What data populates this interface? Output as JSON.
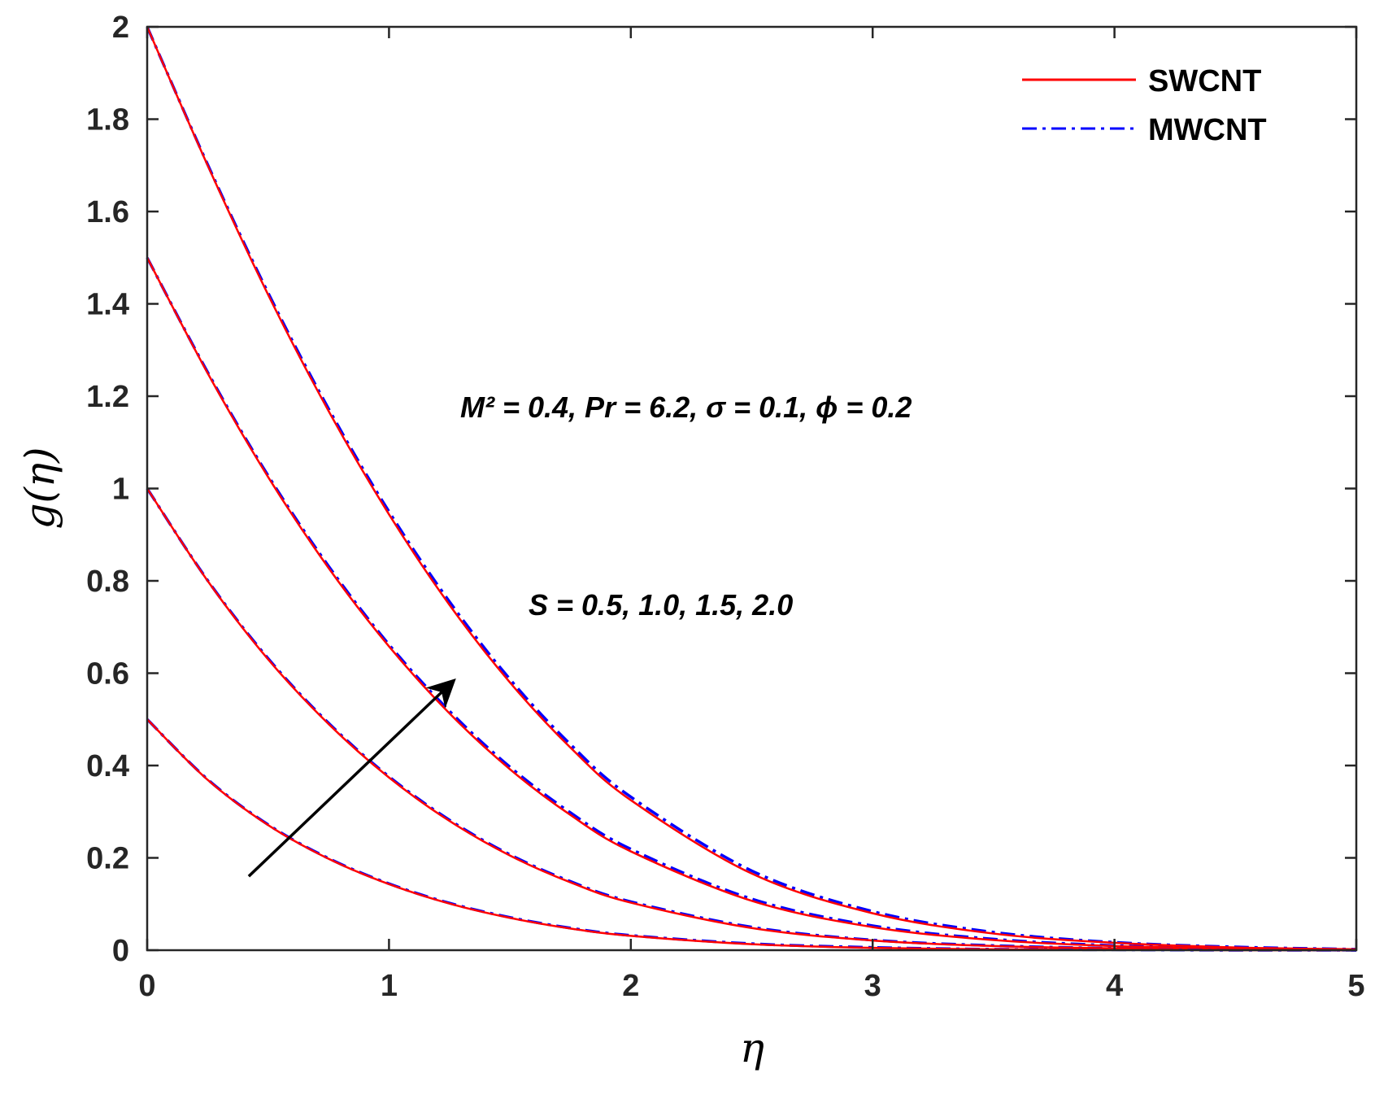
{
  "chart_data": {
    "type": "line",
    "xlabel": "η",
    "ylabel": "g(η)",
    "xlim": [
      0,
      5
    ],
    "ylim": [
      0,
      2
    ],
    "xticks": [
      0,
      1,
      2,
      3,
      4,
      5
    ],
    "yticks": [
      0,
      0.2,
      0.4,
      0.6,
      0.8,
      1,
      1.2,
      1.4,
      1.6,
      1.8,
      2
    ],
    "grid": false,
    "legend_position": "top-right",
    "legend": [
      {
        "label": "SWCNT",
        "color": "#ff0000",
        "style": "solid"
      },
      {
        "label": "MWCNT",
        "color": "#0000ff",
        "style": "dash-dot"
      }
    ],
    "annotations": {
      "params": "M² = 0.4, Pr = 6.2, σ = 0.1, ϕ = 0.2",
      "s_values": "S = 0.5, 1.0, 1.5, 2.0"
    },
    "arrow": {
      "from": [
        0.42,
        0.16
      ],
      "to": [
        1.26,
        0.58
      ],
      "direction": "increasing S"
    },
    "x": [
      0,
      0.25,
      0.5,
      0.75,
      1.0,
      1.25,
      1.5,
      1.75,
      2.0,
      2.5,
      3.0,
      3.5,
      4.0,
      4.5,
      5.0
    ],
    "series": [
      {
        "S": 0.5,
        "SWCNT": [
          0.5,
          0.369,
          0.271,
          0.198,
          0.143,
          0.101,
          0.07,
          0.047,
          0.031,
          0.013,
          0.005,
          0.002,
          0.001,
          0.0,
          0.0
        ],
        "MWCNT": [
          0.5,
          0.37,
          0.272,
          0.199,
          0.144,
          0.102,
          0.071,
          0.048,
          0.032,
          0.014,
          0.006,
          0.002,
          0.001,
          0.0,
          0.0
        ]
      },
      {
        "S": 1.0,
        "SWCNT": [
          1.0,
          0.8,
          0.63,
          0.49,
          0.374,
          0.28,
          0.205,
          0.147,
          0.103,
          0.048,
          0.021,
          0.009,
          0.004,
          0.001,
          0.0
        ],
        "MWCNT": [
          1.0,
          0.801,
          0.632,
          0.492,
          0.376,
          0.282,
          0.207,
          0.149,
          0.105,
          0.05,
          0.022,
          0.01,
          0.004,
          0.002,
          0.0
        ]
      },
      {
        "S": 1.5,
        "SWCNT": [
          1.5,
          1.25,
          1.025,
          0.828,
          0.658,
          0.513,
          0.392,
          0.293,
          0.214,
          0.107,
          0.05,
          0.022,
          0.009,
          0.004,
          0.001
        ],
        "MWCNT": [
          1.5,
          1.252,
          1.028,
          0.832,
          0.662,
          0.518,
          0.397,
          0.298,
          0.219,
          0.111,
          0.053,
          0.024,
          0.01,
          0.004,
          0.001
        ]
      },
      {
        "S": 2.0,
        "SWCNT": [
          2.0,
          1.7,
          1.42,
          1.168,
          0.944,
          0.748,
          0.58,
          0.439,
          0.325,
          0.166,
          0.08,
          0.036,
          0.016,
          0.006,
          0.002
        ],
        "MWCNT": [
          2.0,
          1.702,
          1.424,
          1.173,
          0.95,
          0.755,
          0.587,
          0.446,
          0.332,
          0.172,
          0.084,
          0.039,
          0.017,
          0.007,
          0.002
        ]
      }
    ]
  }
}
